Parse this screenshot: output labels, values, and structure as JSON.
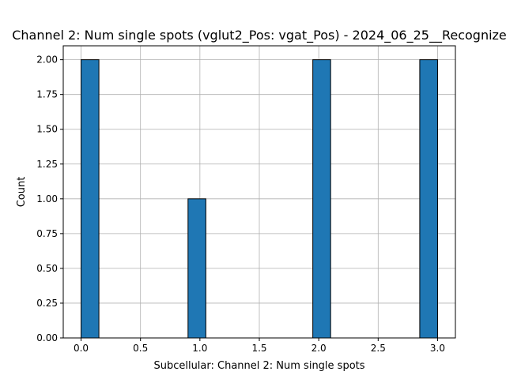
{
  "chart_data": {
    "type": "bar",
    "title": "Channel 2: Num single spots (vglut2_Pos: vgat_Pos) - 2024_06_25__Recognize",
    "xlabel": "Subcellular: Channel 2: Num single spots",
    "ylabel": "Count",
    "xlim": [
      -0.15,
      3.15
    ],
    "ylim": [
      0,
      2.1
    ],
    "grid": true,
    "bar_color": "#1f77b4",
    "edge_color": "#000000",
    "bins": [
      {
        "x0": 0.0,
        "x1": 0.15,
        "count": 2
      },
      {
        "x0": 0.9,
        "x1": 1.05,
        "count": 1
      },
      {
        "x0": 1.95,
        "x1": 2.1,
        "count": 2
      },
      {
        "x0": 2.85,
        "x1": 3.0,
        "count": 2
      }
    ],
    "xticks": [
      0.0,
      0.5,
      1.0,
      1.5,
      2.0,
      2.5,
      3.0
    ],
    "xtick_labels": [
      "0.0",
      "0.5",
      "1.0",
      "1.5",
      "2.0",
      "2.5",
      "3.0"
    ],
    "yticks": [
      0.0,
      0.25,
      0.5,
      0.75,
      1.0,
      1.25,
      1.5,
      1.75,
      2.0
    ],
    "ytick_labels": [
      "0.00",
      "0.25",
      "0.50",
      "0.75",
      "1.00",
      "1.25",
      "1.50",
      "1.75",
      "2.00"
    ]
  }
}
